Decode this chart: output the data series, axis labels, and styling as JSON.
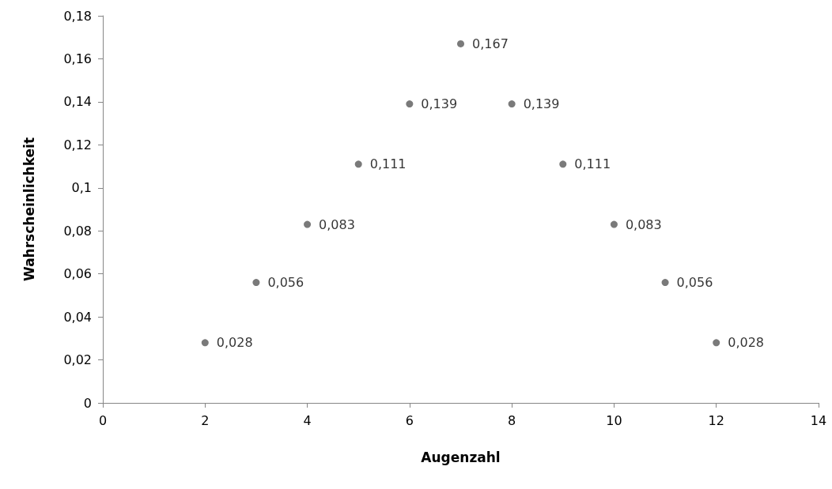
{
  "chart_data": {
    "type": "scatter",
    "xlabel": "Augenzahl",
    "ylabel": "Wahrscheinlichkeit",
    "x": [
      2,
      3,
      4,
      5,
      6,
      7,
      8,
      9,
      10,
      11,
      12
    ],
    "values": [
      0.028,
      0.056,
      0.083,
      0.111,
      0.139,
      0.167,
      0.139,
      0.111,
      0.083,
      0.056,
      0.028
    ],
    "value_labels": [
      "0,028",
      "0,056",
      "0,083",
      "0,111",
      "0,139",
      "0,167",
      "0,139",
      "0,111",
      "0,083",
      "0,056",
      "0,028"
    ],
    "color": "#595959",
    "marker": "circle",
    "grid": false,
    "xlim": [
      0,
      14
    ],
    "xticks": [
      0,
      2,
      4,
      6,
      8,
      10,
      12,
      14
    ],
    "ylim": [
      0,
      0.18
    ],
    "yticks": [
      {
        "value": 0,
        "label": "0"
      },
      {
        "value": 0.02,
        "label": "0,02"
      },
      {
        "value": 0.04,
        "label": "0,04"
      },
      {
        "value": 0.06,
        "label": "0,06"
      },
      {
        "value": 0.08,
        "label": "0,08"
      },
      {
        "value": 0.1,
        "label": "0,1"
      },
      {
        "value": 0.12,
        "label": "0,12"
      },
      {
        "value": 0.14,
        "label": "0,14"
      },
      {
        "value": 0.16,
        "label": "0,16"
      },
      {
        "value": 0.18,
        "label": "0,18"
      }
    ]
  }
}
